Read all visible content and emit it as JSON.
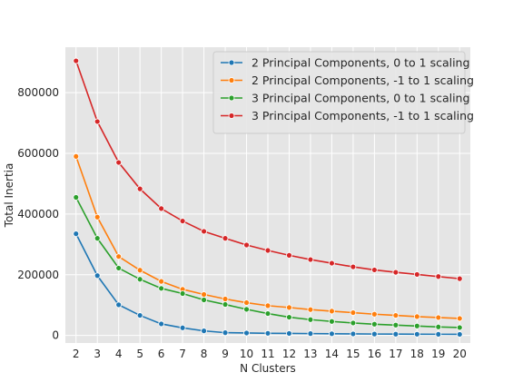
{
  "chart_data": {
    "type": "line",
    "title": "",
    "xlabel": "N Clusters",
    "ylabel": "Total Inertia",
    "x": [
      2,
      3,
      4,
      5,
      6,
      7,
      8,
      9,
      10,
      11,
      12,
      13,
      14,
      15,
      16,
      17,
      18,
      19,
      20
    ],
    "xlim": [
      1.5,
      20.5
    ],
    "ylim": [
      -25000,
      950000
    ],
    "yticks": [
      0,
      200000,
      400000,
      600000,
      800000
    ],
    "grid": true,
    "legend_position": "top-right",
    "series": [
      {
        "name": "2 Principal Components, 0 to 1 scaling",
        "color": "#1f77b4",
        "values": [
          335000,
          197000,
          101000,
          66000,
          38000,
          25000,
          15000,
          9000,
          8000,
          7000,
          6500,
          6000,
          5500,
          5000,
          4500,
          4200,
          4000,
          3800,
          3500
        ]
      },
      {
        "name": "2 Principal Components, -1 to 1 scaling",
        "color": "#ff7f0e",
        "values": [
          590000,
          390000,
          260000,
          215000,
          178000,
          152000,
          135000,
          120000,
          108000,
          98000,
          92000,
          85000,
          80000,
          75000,
          70000,
          66000,
          62000,
          59000,
          56000
        ]
      },
      {
        "name": "3 Principal Components, 0 to 1 scaling",
        "color": "#2ca02c",
        "values": [
          455000,
          320000,
          222000,
          185000,
          155000,
          138000,
          117000,
          102000,
          86000,
          72000,
          60000,
          52000,
          46000,
          41000,
          37000,
          34000,
          31000,
          28000,
          26000
        ]
      },
      {
        "name": "3 Principal Components, -1 to 1 scaling",
        "color": "#d62728",
        "values": [
          905000,
          705000,
          570000,
          483000,
          418000,
          377000,
          343000,
          320000,
          298000,
          280000,
          264000,
          250000,
          238000,
          226000,
          216000,
          208000,
          201000,
          194000,
          187000
        ]
      }
    ]
  }
}
